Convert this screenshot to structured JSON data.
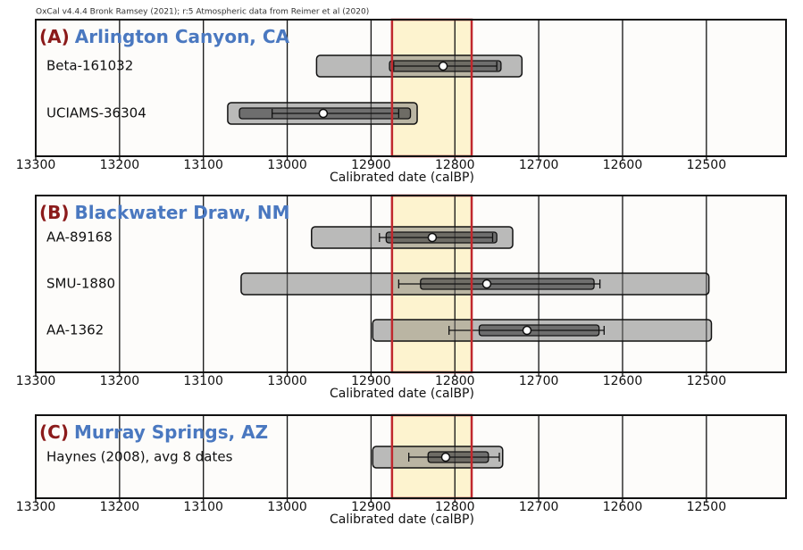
{
  "header": "OxCal v4.4.4 Bronk Ramsey (2021); r:5 Atmospheric data from Reimer et al (2020)",
  "chart_data": [
    {
      "type": "range",
      "label": "(A)",
      "title": "Arlington Canyon, CA",
      "x_label": "Calibrated date (calBP)",
      "xlim": [
        13300,
        12405
      ],
      "xticks": [
        13300,
        13200,
        13100,
        13000,
        12900,
        12800,
        12700,
        12600,
        12500
      ],
      "grid": true,
      "highlight": [
        12875,
        12780
      ],
      "highlight_color": "#fdf3cf",
      "samples": [
        {
          "name": "Beta-161032",
          "range95": [
            12965,
            12720
          ],
          "range68": [
            12878,
            12745
          ],
          "median": 12814,
          "interval": [
            12873,
            12750
          ]
        },
        {
          "name": "UCIAMS-36304",
          "range95": [
            13071,
            12845
          ],
          "range68": [
            13057,
            12853
          ],
          "median": 12957,
          "interval": [
            13018,
            12867
          ]
        }
      ]
    },
    {
      "type": "range",
      "label": "(B)",
      "title": "Blackwater Draw, NM",
      "x_label": "Calibrated date (calBP)",
      "xlim": [
        13300,
        12405
      ],
      "xticks": [
        13300,
        13200,
        13100,
        13000,
        12900,
        12800,
        12700,
        12600,
        12500
      ],
      "grid": true,
      "highlight": [
        12875,
        12780
      ],
      "highlight_color": "#fdf3cf",
      "samples": [
        {
          "name": "AA-89168",
          "range95": [
            12971,
            12731
          ],
          "range68": [
            12882,
            12750
          ],
          "median": 12827,
          "interval": [
            12890,
            12755
          ]
        },
        {
          "name": "SMU-1880",
          "range95": [
            13055,
            12497
          ],
          "range68": [
            12841,
            12634
          ],
          "median": 12762,
          "interval": [
            12867,
            12627
          ]
        },
        {
          "name": "AA-1362",
          "range95": [
            12898,
            12494
          ],
          "range68": [
            12771,
            12628
          ],
          "median": 12714,
          "interval": [
            12807,
            12622
          ]
        }
      ]
    },
    {
      "type": "range",
      "label": "(C)",
      "title": "Murray Springs, AZ",
      "x_label": "Calibrated date (calBP)",
      "xlim": [
        13300,
        12405
      ],
      "xticks": [
        13300,
        13200,
        13100,
        13000,
        12900,
        12800,
        12700,
        12600,
        12500
      ],
      "grid": true,
      "highlight": [
        12875,
        12780
      ],
      "highlight_color": "#fdf3cf",
      "samples": [
        {
          "name": "Haynes (2008), avg 8 dates",
          "range95": [
            12898,
            12743
          ],
          "range68": [
            12832,
            12760
          ],
          "median": 12811,
          "interval": [
            12855,
            12747
          ]
        }
      ]
    }
  ]
}
